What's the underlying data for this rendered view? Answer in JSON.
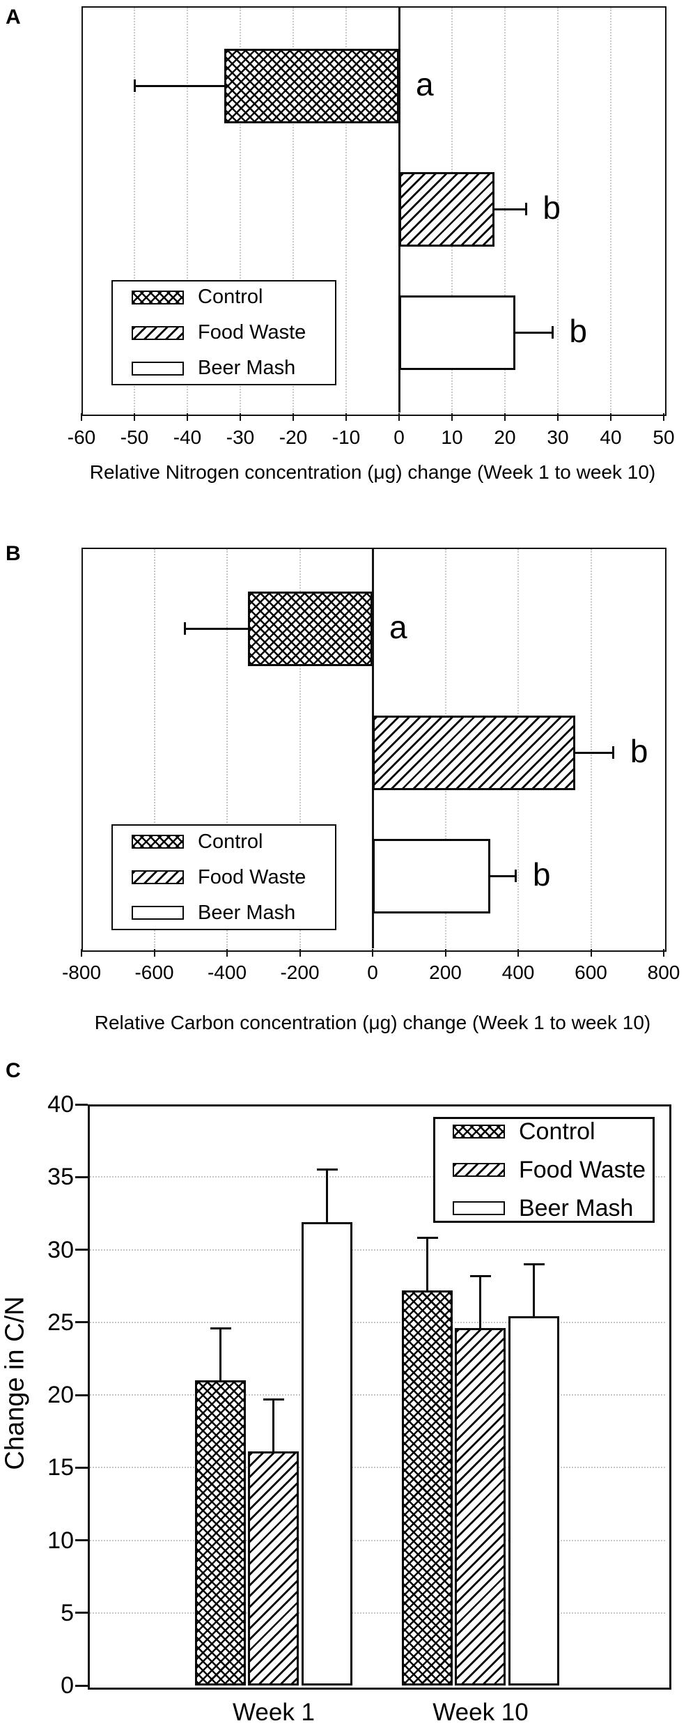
{
  "panels": {
    "a": {
      "letter": "A"
    },
    "b": {
      "letter": "B"
    },
    "c": {
      "letter": "C"
    }
  },
  "legend_labels": [
    "Control",
    "Food Waste",
    "Beer Mash"
  ],
  "chart_data": [
    {
      "id": "A",
      "type": "bar",
      "orientation": "horizontal",
      "categories": [
        "Control",
        "Food Waste",
        "Beer Mash"
      ],
      "values": [
        -33,
        18,
        22
      ],
      "errors": [
        17,
        6,
        7
      ],
      "sig_labels": [
        "a",
        "b",
        "b"
      ],
      "patterns": [
        "crosshatch",
        "diagonal",
        "plain"
      ],
      "xlabel": "Relative Nitrogen concentration (μg) change (Week 1 to week 10)",
      "xlim": [
        -60,
        50
      ],
      "xtick_step": 10,
      "grid": "vertical-dotted",
      "legend_position": "lower-left-inside"
    },
    {
      "id": "B",
      "type": "bar",
      "orientation": "horizontal",
      "categories": [
        "Control",
        "Food Waste",
        "Beer Mash"
      ],
      "values": [
        -343,
        557,
        323
      ],
      "errors": [
        172,
        105,
        71
      ],
      "sig_labels": [
        "a",
        "b",
        "b"
      ],
      "patterns": [
        "crosshatch",
        "diagonal",
        "plain"
      ],
      "xlabel": "Relative Carbon concentration (μg) change (Week 1 to week 10)",
      "xlim": [
        -800,
        800
      ],
      "xtick_step": 200,
      "grid": "vertical-dotted",
      "legend_position": "lower-left-inside"
    },
    {
      "id": "C",
      "type": "bar",
      "orientation": "vertical",
      "categories": [
        "Week 1",
        "Week 10"
      ],
      "series": [
        {
          "name": "Control",
          "pattern": "crosshatch",
          "values": [
            21.0,
            27.2
          ],
          "errors": [
            3.6,
            3.6
          ]
        },
        {
          "name": "Food Waste",
          "pattern": "diagonal",
          "values": [
            16.1,
            24.6
          ],
          "errors": [
            3.6,
            3.6
          ]
        },
        {
          "name": "Beer Mash",
          "pattern": "plain",
          "values": [
            31.9,
            25.4
          ],
          "errors": [
            3.6,
            3.6
          ]
        }
      ],
      "ylabel": "Change in C/N",
      "ylim": [
        0,
        40
      ],
      "ytick_step": 5,
      "grid": "horizontal-dotted",
      "legend_position": "upper-right-inside"
    }
  ]
}
